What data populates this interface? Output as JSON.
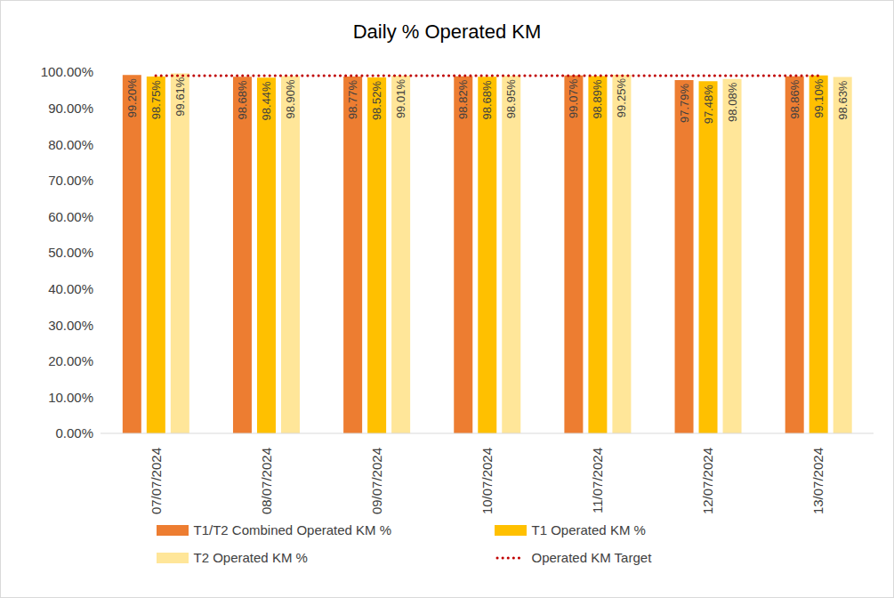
{
  "chart_data": {
    "type": "bar",
    "title": "Daily % Operated KM",
    "categories": [
      "07/07/2024",
      "08/07/2024",
      "09/07/2024",
      "10/07/2024",
      "11/07/2024",
      "12/07/2024",
      "13/07/2024"
    ],
    "series": [
      {
        "name": "T1/T2 Combined Operated KM %",
        "color": "#ED7D31",
        "values": [
          99.2,
          98.68,
          98.77,
          98.82,
          99.07,
          97.79,
          98.86
        ],
        "value_labels": [
          "99.20%",
          "98.68%",
          "98.77%",
          "98.82%",
          "99.07%",
          "97.79%",
          "98.86%"
        ]
      },
      {
        "name": "T1 Operated KM %",
        "color": "#FFC000",
        "values": [
          98.75,
          98.44,
          98.52,
          98.68,
          98.89,
          97.48,
          99.1
        ],
        "value_labels": [
          "98.75%",
          "98.44%",
          "98.52%",
          "98.68%",
          "98.89%",
          "97.48%",
          "99.10%"
        ]
      },
      {
        "name": "T2 Operated KM %",
        "color": "#FFE699",
        "values": [
          99.61,
          98.9,
          99.01,
          98.95,
          99.25,
          98.08,
          98.63
        ],
        "value_labels": [
          "99.61%",
          "98.90%",
          "99.01%",
          "98.95%",
          "99.25%",
          "98.08%",
          "98.63%"
        ]
      },
      {
        "name": "Operated KM Target",
        "color": "#C00000",
        "type": "line",
        "line_style": "dotted",
        "values": [
          99,
          99,
          99,
          99,
          99,
          99,
          99
        ]
      }
    ],
    "ylim": [
      0,
      100
    ],
    "yticks": [
      {
        "value": 0,
        "label": "0.00%"
      },
      {
        "value": 10,
        "label": "10.00%"
      },
      {
        "value": 20,
        "label": "20.00%"
      },
      {
        "value": 30,
        "label": "30.00%"
      },
      {
        "value": 40,
        "label": "40.00%"
      },
      {
        "value": 50,
        "label": "50.00%"
      },
      {
        "value": 60,
        "label": "60.00%"
      },
      {
        "value": 70,
        "label": "70.00%"
      },
      {
        "value": 80,
        "label": "80.00%"
      },
      {
        "value": 90,
        "label": "90.00%"
      },
      {
        "value": 100,
        "label": "100.00%"
      }
    ],
    "grid": false,
    "legend": "bottom",
    "data_labels": true
  }
}
